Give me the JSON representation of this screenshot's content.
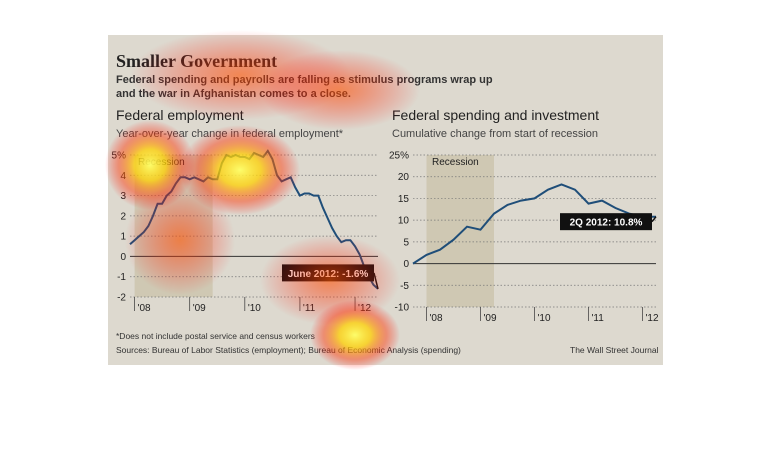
{
  "header": {
    "title": "Smaller Government",
    "subtitle_line1": "Federal spending and payrolls are falling as stimulus programs wrap up",
    "subtitle_line2": "and the war in Afghanistan comes to a close."
  },
  "footnote": "*Does not include postal service and census workers",
  "sources": "Sources: Bureau of Labor Statistics (employment); Bureau of Economic Analysis (spending)",
  "credit": "The Wall Street Journal",
  "colors": {
    "line": "#1f4e79",
    "recession": "#cfc8b3",
    "background": "#ddd9cf",
    "callout_bg": "#111111",
    "callout_text": "#ffffff"
  },
  "chart_data": [
    {
      "type": "line",
      "title": "Federal employment",
      "subtitle": "Year-over-year change in federal employment*",
      "recession_label": "Recession",
      "recession": [
        "2008-01",
        "2009-06"
      ],
      "xlim": [
        "2007-12",
        "2012-06"
      ],
      "ylim": [
        -2,
        5
      ],
      "yticks": [
        5,
        4,
        3,
        2,
        1,
        0,
        -1,
        -2
      ],
      "ytick_labels": [
        "5%",
        "4",
        "3",
        "2",
        "1",
        "0",
        "-1",
        "-2"
      ],
      "xtick_labels": [
        "'08",
        "'09",
        "'10",
        "'11",
        "'12"
      ],
      "xtick_dates": [
        "2008-01",
        "2009-01",
        "2010-01",
        "2011-01",
        "2012-01"
      ],
      "callout": "June 2012: -1.6%",
      "series": [
        {
          "x": [
            "2007-12",
            "2008-01",
            "2008-02",
            "2008-03",
            "2008-04",
            "2008-05",
            "2008-06",
            "2008-07",
            "2008-08",
            "2008-09",
            "2008-10",
            "2008-11",
            "2008-12",
            "2009-01",
            "2009-02",
            "2009-03",
            "2009-04",
            "2009-05",
            "2009-06",
            "2009-07",
            "2009-08",
            "2009-09",
            "2009-10",
            "2009-11",
            "2009-12",
            "2010-01",
            "2010-02",
            "2010-03",
            "2010-04",
            "2010-05",
            "2010-06",
            "2010-07",
            "2010-08",
            "2010-09",
            "2010-10",
            "2010-11",
            "2010-12",
            "2011-01",
            "2011-02",
            "2011-03",
            "2011-04",
            "2011-05",
            "2011-06",
            "2011-07",
            "2011-08",
            "2011-09",
            "2011-10",
            "2011-11",
            "2011-12",
            "2012-01",
            "2012-02",
            "2012-03",
            "2012-04",
            "2012-05",
            "2012-06"
          ],
          "values": [
            0.6,
            0.8,
            1.0,
            1.2,
            1.5,
            2.0,
            2.6,
            2.6,
            3.0,
            3.2,
            3.6,
            3.9,
            3.9,
            3.8,
            3.9,
            3.8,
            3.7,
            3.9,
            3.8,
            3.8,
            4.6,
            5.0,
            4.9,
            5.0,
            4.9,
            4.9,
            4.8,
            5.1,
            5.0,
            4.9,
            5.2,
            4.8,
            4.0,
            3.7,
            3.8,
            3.9,
            3.4,
            3.0,
            3.1,
            3.1,
            3.0,
            3.0,
            2.4,
            1.9,
            1.4,
            1.0,
            0.7,
            0.8,
            0.8,
            0.5,
            0.1,
            -0.5,
            -1.0,
            -1.4,
            -1.6
          ]
        }
      ]
    },
    {
      "type": "line",
      "title": "Federal spending and investment",
      "subtitle": "Cumulative change from start of recession",
      "recession_label": "Recession",
      "recession": [
        "2008Q1",
        "2009Q2"
      ],
      "xlim": [
        "2007Q4",
        "2012Q2"
      ],
      "ylim": [
        -10,
        25
      ],
      "yticks": [
        25,
        20,
        15,
        10,
        5,
        0,
        -5,
        -10
      ],
      "ytick_labels": [
        "25%",
        "20",
        "15",
        "10",
        "5",
        "0",
        "-5",
        "-10"
      ],
      "xtick_labels": [
        "'08",
        "'09",
        "'10",
        "'11",
        "'12"
      ],
      "xtick_dates": [
        "2008Q1",
        "2009Q1",
        "2010Q1",
        "2011Q1",
        "2012Q1"
      ],
      "callout": "2Q 2012: 10.8%",
      "series": [
        {
          "x": [
            "2007Q4",
            "2008Q1",
            "2008Q2",
            "2008Q3",
            "2008Q4",
            "2009Q1",
            "2009Q2",
            "2009Q3",
            "2009Q4",
            "2010Q1",
            "2010Q2",
            "2010Q3",
            "2010Q4",
            "2011Q1",
            "2011Q2",
            "2011Q3",
            "2011Q4",
            "2012Q1",
            "2012Q2"
          ],
          "values": [
            0,
            2.0,
            3.2,
            5.5,
            8.5,
            7.8,
            11.5,
            13.5,
            14.5,
            15.0,
            17.0,
            18.2,
            17.0,
            13.8,
            14.5,
            12.8,
            11.5,
            10.8,
            10.8
          ]
        }
      ]
    }
  ]
}
